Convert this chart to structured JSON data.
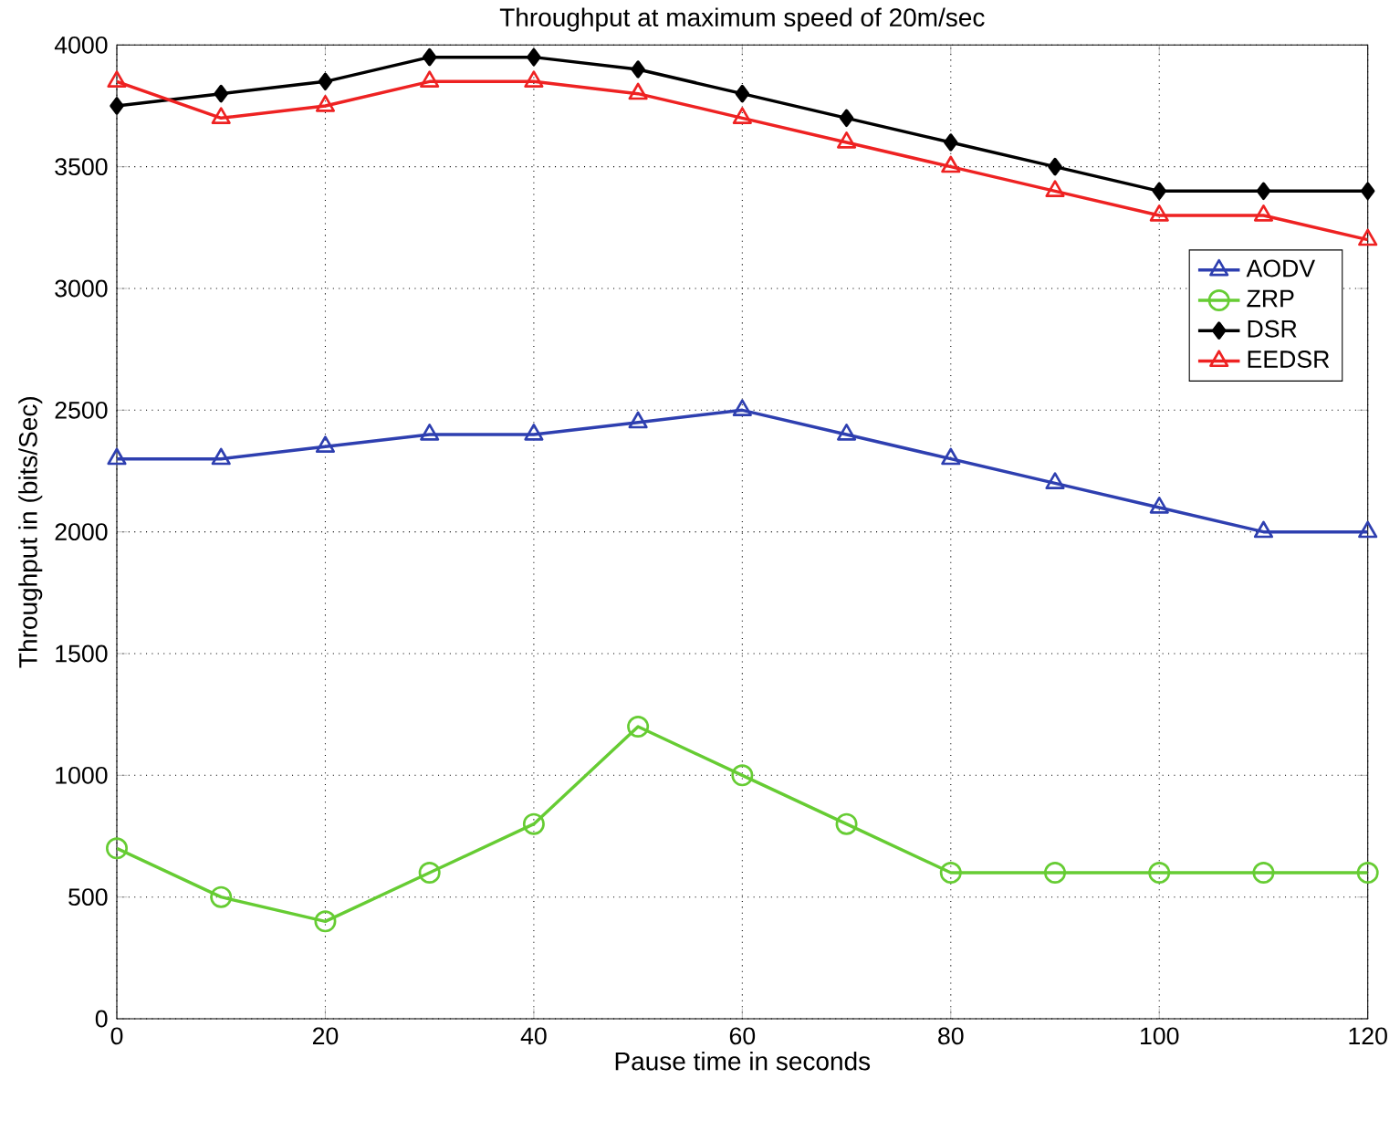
{
  "chart_data": {
    "type": "line",
    "title": "Throughput at maximum speed of 20m/sec",
    "xlabel": "Pause time in seconds",
    "ylabel": "Throughput in (bits/Sec)",
    "x": [
      0,
      10,
      20,
      30,
      40,
      50,
      60,
      70,
      80,
      90,
      100,
      110,
      120
    ],
    "series": [
      {
        "name": "AODV",
        "color": "#2e3fb0",
        "marker": "triangle",
        "values": [
          2300,
          2300,
          2350,
          2400,
          2400,
          2450,
          2500,
          2400,
          2300,
          2200,
          2100,
          2000,
          2000
        ]
      },
      {
        "name": "ZRP",
        "color": "#66cc33",
        "marker": "circle",
        "values": [
          700,
          500,
          400,
          600,
          800,
          1200,
          1000,
          800,
          600,
          600,
          600,
          600,
          600
        ]
      },
      {
        "name": "DSR",
        "color": "#000000",
        "marker": "diamond",
        "values": [
          3750,
          3800,
          3850,
          3950,
          3950,
          3900,
          3800,
          3700,
          3600,
          3500,
          3400,
          3400,
          3400
        ]
      },
      {
        "name": "EEDSR",
        "color": "#ee2222",
        "marker": "triangle",
        "values": [
          3850,
          3700,
          3750,
          3850,
          3850,
          3800,
          3700,
          3600,
          3500,
          3400,
          3300,
          3300,
          3200
        ]
      }
    ],
    "xlim": [
      0,
      120
    ],
    "xticks": [
      0,
      20,
      40,
      60,
      80,
      100,
      120
    ],
    "ylim": [
      0,
      4000
    ],
    "yticks": [
      0,
      500,
      1000,
      1500,
      2000,
      2500,
      3000,
      3500,
      4000
    ],
    "grid": true,
    "legend": "right",
    "line_style": "solid"
  }
}
